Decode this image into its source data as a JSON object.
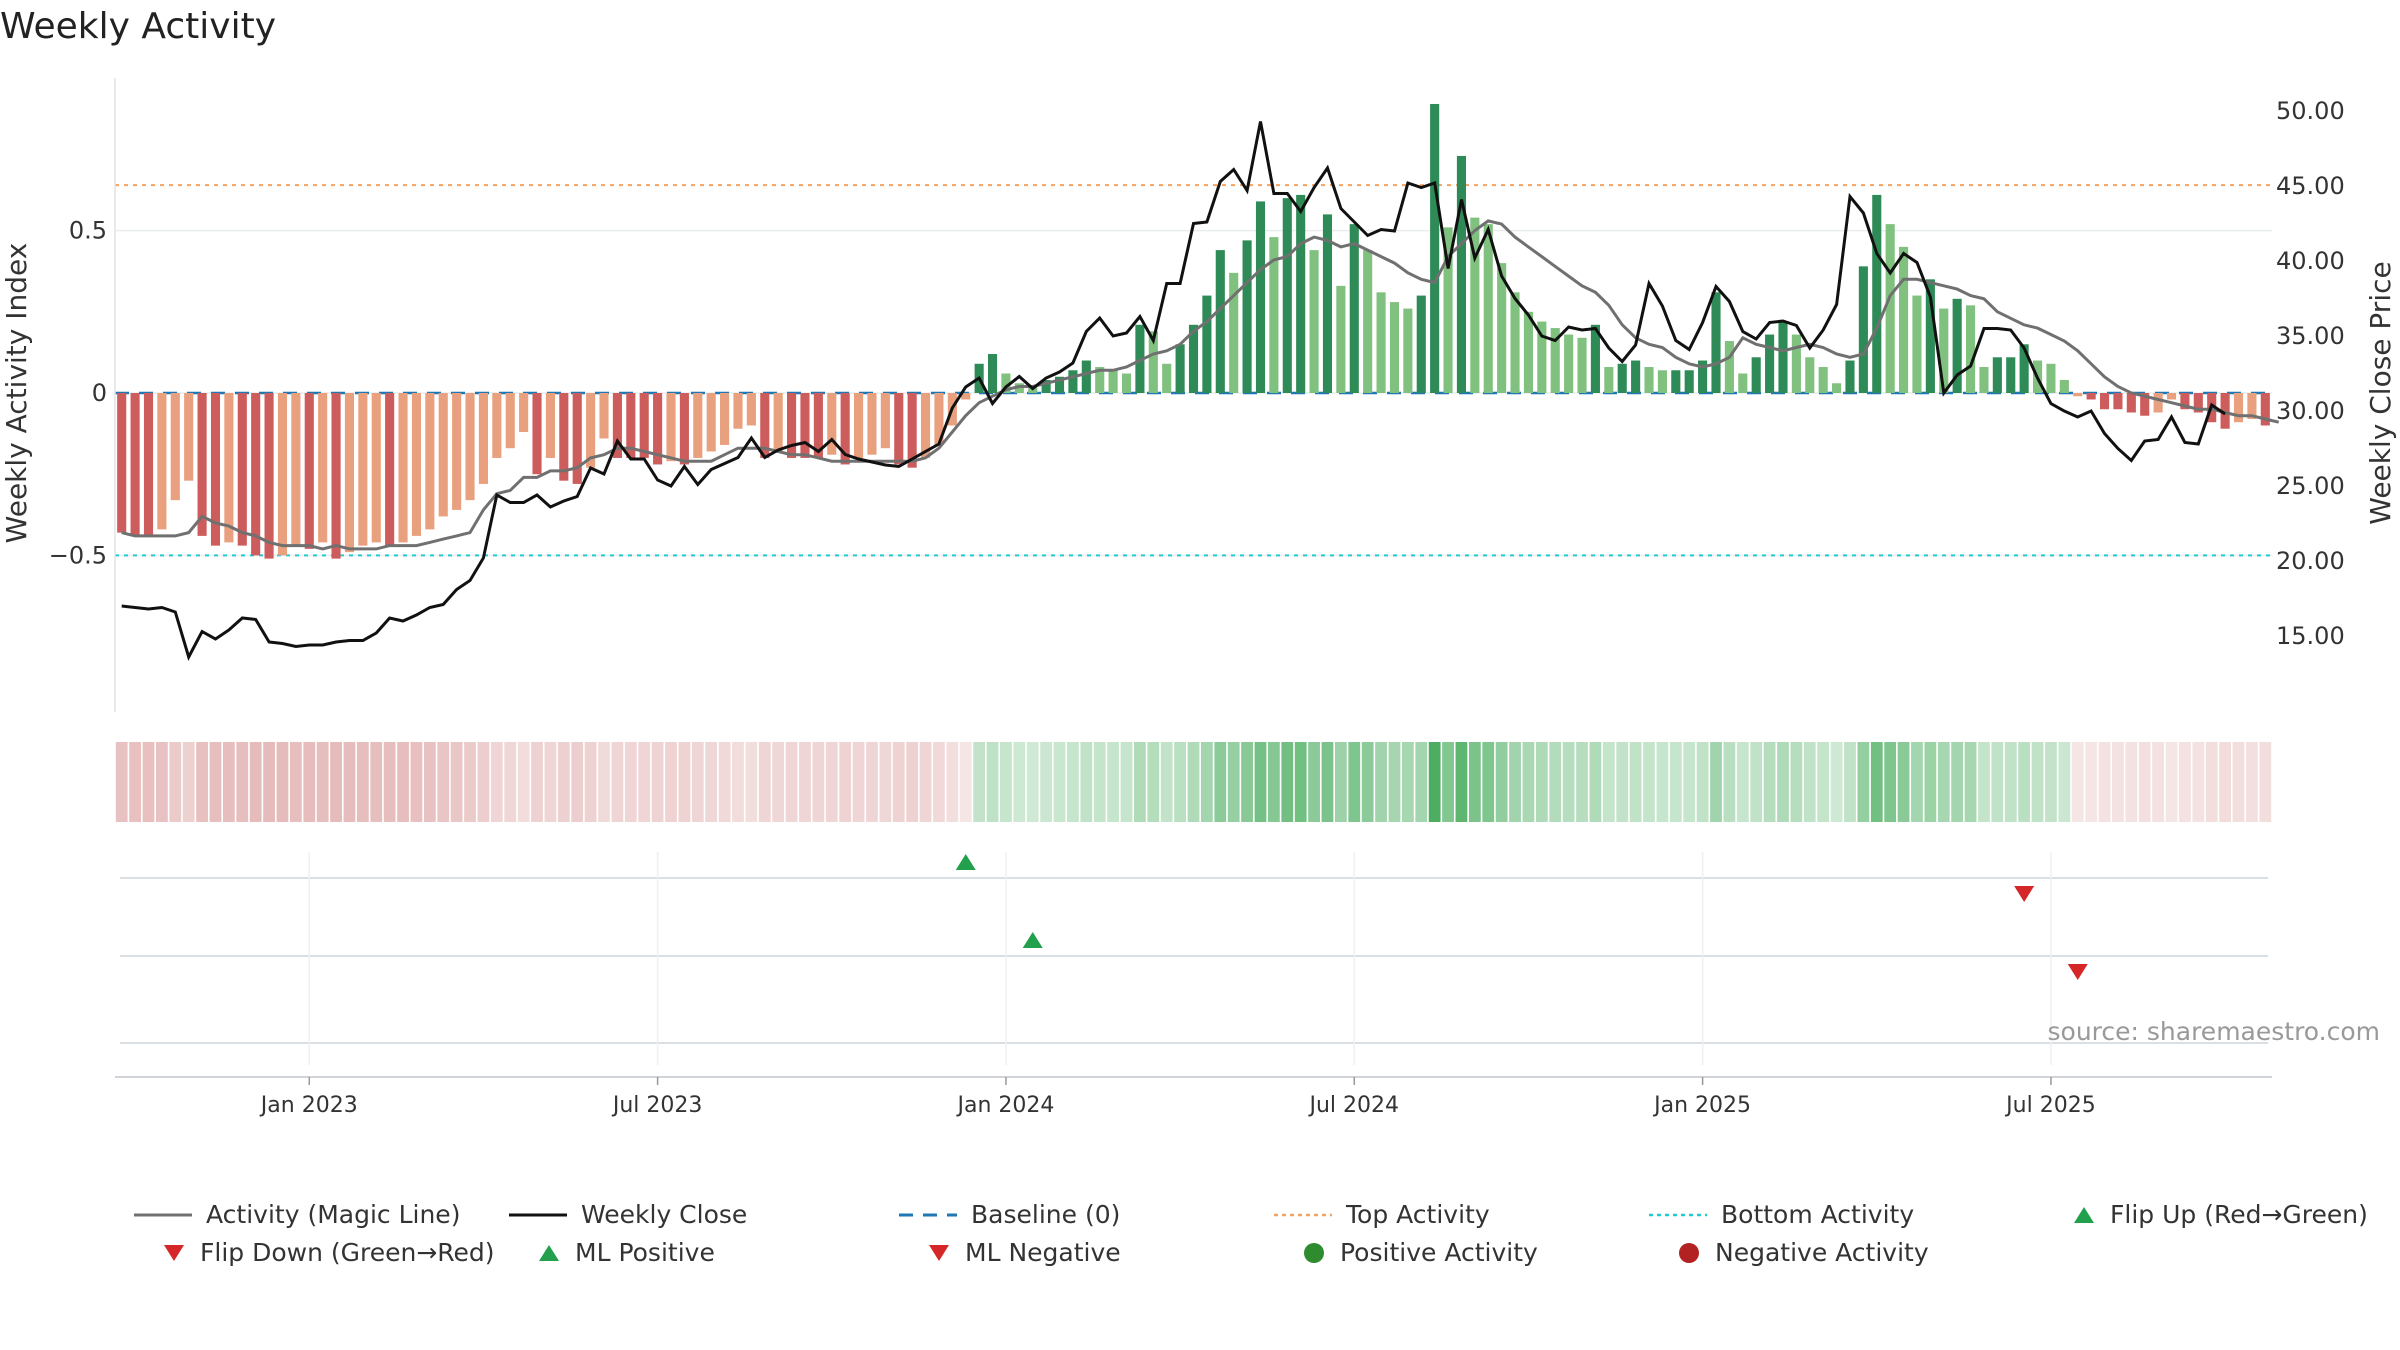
{
  "title": "Weekly Activity",
  "source_text": "source: sharemaestro.com",
  "chart_data": {
    "type": "bar",
    "ylabel_left": "Weekly Activity Index",
    "ylabel_right": "Weekly Close Price",
    "left_ticks": [
      {
        "value": 0.5,
        "label": "0.5"
      },
      {
        "value": 0,
        "label": "0"
      },
      {
        "value": -0.5,
        "label": "−0.5"
      }
    ],
    "right_ticks": [
      {
        "value": 50,
        "label": "50.00"
      },
      {
        "value": 45,
        "label": "45.00"
      },
      {
        "value": 40,
        "label": "40.00"
      },
      {
        "value": 35,
        "label": "35.00"
      },
      {
        "value": 30,
        "label": "30.00"
      },
      {
        "value": 25,
        "label": "25.00"
      },
      {
        "value": 20,
        "label": "20.00"
      },
      {
        "value": 15,
        "label": "15.00"
      }
    ],
    "x_ticks": [
      {
        "week": 14,
        "label": "Jan 2023"
      },
      {
        "week": 40,
        "label": "Jul 2023"
      },
      {
        "week": 66,
        "label": "Jan 2024"
      },
      {
        "week": 92,
        "label": "Jul 2024"
      },
      {
        "week": 118,
        "label": "Jan 2025"
      },
      {
        "week": 144,
        "label": "Jul 2025"
      }
    ],
    "y_left_range": [
      -0.97,
      0.97
    ],
    "y_right_range": [
      10.2,
      52.2
    ],
    "top_activity": 0.64,
    "bottom_activity": -0.5,
    "activity": [
      -0.43,
      -0.44,
      -0.44,
      -0.42,
      -0.33,
      -0.27,
      -0.44,
      -0.47,
      -0.46,
      -0.47,
      -0.5,
      -0.51,
      -0.5,
      -0.47,
      -0.48,
      -0.46,
      -0.51,
      -0.49,
      -0.47,
      -0.46,
      -0.47,
      -0.46,
      -0.44,
      -0.42,
      -0.38,
      -0.36,
      -0.33,
      -0.28,
      -0.2,
      -0.17,
      -0.12,
      -0.25,
      -0.2,
      -0.27,
      -0.28,
      -0.23,
      -0.14,
      -0.2,
      -0.2,
      -0.2,
      -0.22,
      -0.21,
      -0.22,
      -0.2,
      -0.18,
      -0.16,
      -0.11,
      -0.1,
      -0.2,
      -0.18,
      -0.2,
      -0.2,
      -0.2,
      -0.19,
      -0.22,
      -0.2,
      -0.19,
      -0.17,
      -0.22,
      -0.23,
      -0.2,
      -0.16,
      -0.1,
      -0.02,
      0.09,
      0.12,
      0.06,
      0.03,
      0.02,
      0.04,
      0.05,
      0.07,
      0.1,
      0.08,
      0.07,
      0.06,
      0.21,
      0.19,
      0.09,
      0.15,
      0.21,
      0.3,
      0.44,
      0.37,
      0.47,
      0.59,
      0.48,
      0.6,
      0.61,
      0.44,
      0.55,
      0.33,
      0.52,
      0.44,
      0.31,
      0.28,
      0.26,
      0.3,
      0.89,
      0.51,
      0.73,
      0.54,
      0.52,
      0.4,
      0.31,
      0.25,
      0.22,
      0.2,
      0.18,
      0.17,
      0.21,
      0.08,
      0.09,
      0.1,
      0.08,
      0.07,
      0.07,
      0.07,
      0.1,
      0.31,
      0.16,
      0.06,
      0.11,
      0.18,
      0.22,
      0.18,
      0.11,
      0.08,
      0.03,
      0.1,
      0.39,
      0.61,
      0.52,
      0.45,
      0.3,
      0.35,
      0.26,
      0.29,
      0.27,
      0.08,
      0.11,
      0.11,
      0.15,
      0.1,
      0.09,
      0.04,
      -0.01,
      -0.02,
      -0.05,
      -0.05,
      -0.06,
      -0.07,
      -0.06,
      -0.02,
      -0.05,
      -0.06,
      -0.09,
      -0.11,
      -0.09,
      -0.08,
      -0.1
    ],
    "magic_line": [
      -0.43,
      -0.44,
      -0.44,
      -0.44,
      -0.44,
      -0.43,
      -0.38,
      -0.4,
      -0.41,
      -0.43,
      -0.44,
      -0.46,
      -0.47,
      -0.47,
      -0.47,
      -0.48,
      -0.47,
      -0.48,
      -0.48,
      -0.48,
      -0.47,
      -0.47,
      -0.47,
      -0.46,
      -0.45,
      -0.44,
      -0.43,
      -0.36,
      -0.31,
      -0.3,
      -0.26,
      -0.26,
      -0.24,
      -0.24,
      -0.23,
      -0.2,
      -0.19,
      -0.17,
      -0.17,
      -0.18,
      -0.19,
      -0.2,
      -0.21,
      -0.21,
      -0.21,
      -0.19,
      -0.17,
      -0.17,
      -0.17,
      -0.18,
      -0.19,
      -0.19,
      -0.2,
      -0.21,
      -0.21,
      -0.21,
      -0.21,
      -0.21,
      -0.21,
      -0.21,
      -0.2,
      -0.17,
      -0.12,
      -0.07,
      -0.03,
      -0.01,
      0.01,
      0.02,
      0.02,
      0.03,
      0.04,
      0.05,
      0.06,
      0.07,
      0.07,
      0.08,
      0.1,
      0.12,
      0.13,
      0.15,
      0.19,
      0.22,
      0.26,
      0.3,
      0.34,
      0.38,
      0.41,
      0.42,
      0.46,
      0.48,
      0.47,
      0.45,
      0.46,
      0.44,
      0.42,
      0.4,
      0.37,
      0.35,
      0.34,
      0.42,
      0.46,
      0.5,
      0.53,
      0.52,
      0.48,
      0.45,
      0.42,
      0.39,
      0.36,
      0.33,
      0.31,
      0.27,
      0.21,
      0.17,
      0.15,
      0.14,
      0.11,
      0.09,
      0.08,
      0.09,
      0.11,
      0.17,
      0.15,
      0.14,
      0.13,
      0.14,
      0.15,
      0.14,
      0.12,
      0.11,
      0.12,
      0.2,
      0.3,
      0.35,
      0.35,
      0.34,
      0.33,
      0.32,
      0.3,
      0.29,
      0.25,
      0.23,
      0.21,
      0.2,
      0.18,
      0.16,
      0.13,
      0.09,
      0.05,
      0.02,
      0.0,
      -0.01,
      -0.02,
      -0.03,
      -0.04,
      -0.05,
      -0.05,
      -0.06,
      -0.07,
      -0.07,
      -0.08,
      -0.09
    ],
    "close": [
      17.0,
      16.9,
      16.8,
      16.9,
      16.6,
      13.6,
      15.3,
      14.8,
      15.4,
      16.2,
      16.1,
      14.6,
      14.5,
      14.3,
      14.4,
      14.4,
      14.6,
      14.7,
      14.7,
      15.2,
      16.2,
      16.0,
      16.4,
      16.9,
      17.1,
      18.1,
      18.7,
      20.2,
      24.4,
      23.9,
      23.9,
      24.4,
      23.6,
      24.0,
      24.3,
      26.2,
      25.8,
      28.0,
      26.8,
      26.8,
      25.4,
      25.0,
      26.3,
      25.1,
      26.1,
      26.5,
      26.9,
      28.2,
      26.9,
      27.4,
      27.7,
      27.9,
      27.3,
      28.1,
      27.1,
      26.8,
      26.6,
      26.4,
      26.3,
      26.8,
      27.3,
      27.8,
      30.2,
      31.6,
      32.2,
      30.5,
      31.6,
      32.3,
      31.5,
      32.2,
      32.6,
      33.2,
      35.3,
      36.2,
      35.0,
      35.2,
      36.3,
      34.7,
      38.5,
      38.5,
      42.5,
      42.6,
      45.3,
      46.1,
      44.7,
      49.3,
      44.5,
      44.5,
      43.3,
      44.9,
      46.2,
      43.5,
      42.6,
      41.7,
      42.1,
      42.0,
      45.2,
      44.9,
      45.2,
      39.5,
      44.1,
      40.2,
      42.1,
      39.0,
      37.5,
      36.4,
      35.0,
      34.7,
      35.6,
      35.4,
      35.5,
      34.2,
      33.3,
      34.4,
      38.5,
      37.0,
      34.7,
      34.1,
      35.9,
      38.3,
      37.3,
      35.3,
      34.8,
      35.9,
      36.0,
      35.7,
      34.2,
      35.4,
      37.1,
      44.3,
      43.2,
      40.5,
      39.2,
      40.5,
      39.9,
      37.6,
      31.2,
      32.4,
      33.0,
      35.5,
      35.5,
      35.4,
      34.2,
      32.2,
      30.5,
      30.0,
      29.6,
      30.0,
      28.5,
      27.5,
      26.7,
      28.0,
      28.1,
      29.6,
      27.9,
      27.8,
      30.4,
      29.8
    ],
    "magic_line_color": "#707070",
    "close_color": "#111111",
    "baseline_color": "#1f77b4",
    "top_color": "#f4a261",
    "bottom_color": "#22c9cf",
    "colors": {
      "pos_strong": "#2e8b57",
      "pos_weak": "#81c17f",
      "neg_strong": "#cd5c5c",
      "neg_weak": "#e8a07e",
      "flip_up": "#22a04b",
      "flip_down": "#d62728",
      "pos_dot": "#2e8b2e",
      "neg_dot": "#b22222"
    },
    "flip_up_weeks": [
      63
    ],
    "flip_down_weeks": [
      142
    ],
    "ml_positive_weeks": [
      68
    ],
    "ml_negative_weeks": [
      146
    ],
    "legend": [
      {
        "label": "Activity (Magic Line)",
        "symbol": "line",
        "color": "#707070"
      },
      {
        "label": "Weekly Close",
        "symbol": "line",
        "color": "#111111"
      },
      {
        "label": "Baseline (0)",
        "symbol": "dash",
        "color": "#1f77b4"
      },
      {
        "label": "Top Activity",
        "symbol": "dot-line",
        "color": "#f4a261"
      },
      {
        "label": "Bottom Activity",
        "symbol": "dot-line",
        "color": "#22c9cf"
      },
      {
        "label": "Flip Up (Red→Green)",
        "symbol": "tri-up",
        "color": "#22a04b"
      },
      {
        "label": "Flip Down (Green→Red)",
        "symbol": "tri-down",
        "color": "#d62728"
      },
      {
        "label": "ML Positive",
        "symbol": "tri-up",
        "color": "#22a04b"
      },
      {
        "label": "ML Negative",
        "symbol": "tri-down",
        "color": "#d62728"
      },
      {
        "label": "Positive Activity",
        "symbol": "circle",
        "color": "#2e8b2e"
      },
      {
        "label": "Negative Activity",
        "symbol": "circle",
        "color": "#b22222"
      }
    ]
  }
}
